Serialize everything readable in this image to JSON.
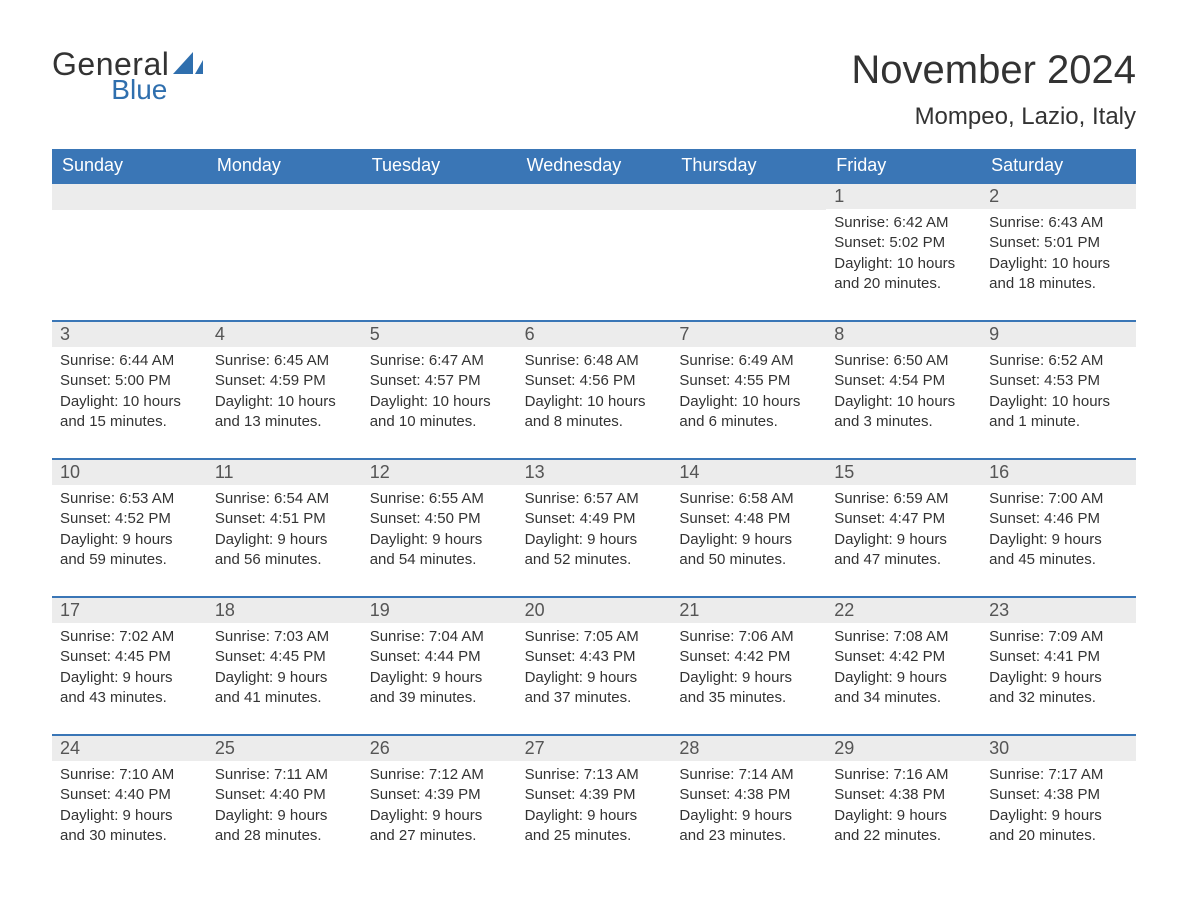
{
  "logo": {
    "general": "General",
    "blue": "Blue",
    "icon_color": "#2f6fae"
  },
  "header": {
    "month_title": "November 2024",
    "location": "Mompeo, Lazio, Italy"
  },
  "colors": {
    "header_bg": "#3a76b6",
    "header_text": "#ffffff",
    "row_border": "#3a76b6",
    "daynum_bg": "#ececec",
    "text": "#333333",
    "background": "#ffffff"
  },
  "typography": {
    "title_fontsize": 40,
    "location_fontsize": 24,
    "weekday_fontsize": 18,
    "daynum_fontsize": 18,
    "detail_fontsize": 15,
    "font_family": "Arial"
  },
  "weekdays": [
    "Sunday",
    "Monday",
    "Tuesday",
    "Wednesday",
    "Thursday",
    "Friday",
    "Saturday"
  ],
  "weeks": [
    [
      null,
      null,
      null,
      null,
      null,
      {
        "num": "1",
        "sunrise": "Sunrise: 6:42 AM",
        "sunset": "Sunset: 5:02 PM",
        "daylight": "Daylight: 10 hours and 20 minutes."
      },
      {
        "num": "2",
        "sunrise": "Sunrise: 6:43 AM",
        "sunset": "Sunset: 5:01 PM",
        "daylight": "Daylight: 10 hours and 18 minutes."
      }
    ],
    [
      {
        "num": "3",
        "sunrise": "Sunrise: 6:44 AM",
        "sunset": "Sunset: 5:00 PM",
        "daylight": "Daylight: 10 hours and 15 minutes."
      },
      {
        "num": "4",
        "sunrise": "Sunrise: 6:45 AM",
        "sunset": "Sunset: 4:59 PM",
        "daylight": "Daylight: 10 hours and 13 minutes."
      },
      {
        "num": "5",
        "sunrise": "Sunrise: 6:47 AM",
        "sunset": "Sunset: 4:57 PM",
        "daylight": "Daylight: 10 hours and 10 minutes."
      },
      {
        "num": "6",
        "sunrise": "Sunrise: 6:48 AM",
        "sunset": "Sunset: 4:56 PM",
        "daylight": "Daylight: 10 hours and 8 minutes."
      },
      {
        "num": "7",
        "sunrise": "Sunrise: 6:49 AM",
        "sunset": "Sunset: 4:55 PM",
        "daylight": "Daylight: 10 hours and 6 minutes."
      },
      {
        "num": "8",
        "sunrise": "Sunrise: 6:50 AM",
        "sunset": "Sunset: 4:54 PM",
        "daylight": "Daylight: 10 hours and 3 minutes."
      },
      {
        "num": "9",
        "sunrise": "Sunrise: 6:52 AM",
        "sunset": "Sunset: 4:53 PM",
        "daylight": "Daylight: 10 hours and 1 minute."
      }
    ],
    [
      {
        "num": "10",
        "sunrise": "Sunrise: 6:53 AM",
        "sunset": "Sunset: 4:52 PM",
        "daylight": "Daylight: 9 hours and 59 minutes."
      },
      {
        "num": "11",
        "sunrise": "Sunrise: 6:54 AM",
        "sunset": "Sunset: 4:51 PM",
        "daylight": "Daylight: 9 hours and 56 minutes."
      },
      {
        "num": "12",
        "sunrise": "Sunrise: 6:55 AM",
        "sunset": "Sunset: 4:50 PM",
        "daylight": "Daylight: 9 hours and 54 minutes."
      },
      {
        "num": "13",
        "sunrise": "Sunrise: 6:57 AM",
        "sunset": "Sunset: 4:49 PM",
        "daylight": "Daylight: 9 hours and 52 minutes."
      },
      {
        "num": "14",
        "sunrise": "Sunrise: 6:58 AM",
        "sunset": "Sunset: 4:48 PM",
        "daylight": "Daylight: 9 hours and 50 minutes."
      },
      {
        "num": "15",
        "sunrise": "Sunrise: 6:59 AM",
        "sunset": "Sunset: 4:47 PM",
        "daylight": "Daylight: 9 hours and 47 minutes."
      },
      {
        "num": "16",
        "sunrise": "Sunrise: 7:00 AM",
        "sunset": "Sunset: 4:46 PM",
        "daylight": "Daylight: 9 hours and 45 minutes."
      }
    ],
    [
      {
        "num": "17",
        "sunrise": "Sunrise: 7:02 AM",
        "sunset": "Sunset: 4:45 PM",
        "daylight": "Daylight: 9 hours and 43 minutes."
      },
      {
        "num": "18",
        "sunrise": "Sunrise: 7:03 AM",
        "sunset": "Sunset: 4:45 PM",
        "daylight": "Daylight: 9 hours and 41 minutes."
      },
      {
        "num": "19",
        "sunrise": "Sunrise: 7:04 AM",
        "sunset": "Sunset: 4:44 PM",
        "daylight": "Daylight: 9 hours and 39 minutes."
      },
      {
        "num": "20",
        "sunrise": "Sunrise: 7:05 AM",
        "sunset": "Sunset: 4:43 PM",
        "daylight": "Daylight: 9 hours and 37 minutes."
      },
      {
        "num": "21",
        "sunrise": "Sunrise: 7:06 AM",
        "sunset": "Sunset: 4:42 PM",
        "daylight": "Daylight: 9 hours and 35 minutes."
      },
      {
        "num": "22",
        "sunrise": "Sunrise: 7:08 AM",
        "sunset": "Sunset: 4:42 PM",
        "daylight": "Daylight: 9 hours and 34 minutes."
      },
      {
        "num": "23",
        "sunrise": "Sunrise: 7:09 AM",
        "sunset": "Sunset: 4:41 PM",
        "daylight": "Daylight: 9 hours and 32 minutes."
      }
    ],
    [
      {
        "num": "24",
        "sunrise": "Sunrise: 7:10 AM",
        "sunset": "Sunset: 4:40 PM",
        "daylight": "Daylight: 9 hours and 30 minutes."
      },
      {
        "num": "25",
        "sunrise": "Sunrise: 7:11 AM",
        "sunset": "Sunset: 4:40 PM",
        "daylight": "Daylight: 9 hours and 28 minutes."
      },
      {
        "num": "26",
        "sunrise": "Sunrise: 7:12 AM",
        "sunset": "Sunset: 4:39 PM",
        "daylight": "Daylight: 9 hours and 27 minutes."
      },
      {
        "num": "27",
        "sunrise": "Sunrise: 7:13 AM",
        "sunset": "Sunset: 4:39 PM",
        "daylight": "Daylight: 9 hours and 25 minutes."
      },
      {
        "num": "28",
        "sunrise": "Sunrise: 7:14 AM",
        "sunset": "Sunset: 4:38 PM",
        "daylight": "Daylight: 9 hours and 23 minutes."
      },
      {
        "num": "29",
        "sunrise": "Sunrise: 7:16 AM",
        "sunset": "Sunset: 4:38 PM",
        "daylight": "Daylight: 9 hours and 22 minutes."
      },
      {
        "num": "30",
        "sunrise": "Sunrise: 7:17 AM",
        "sunset": "Sunset: 4:38 PM",
        "daylight": "Daylight: 9 hours and 20 minutes."
      }
    ]
  ]
}
